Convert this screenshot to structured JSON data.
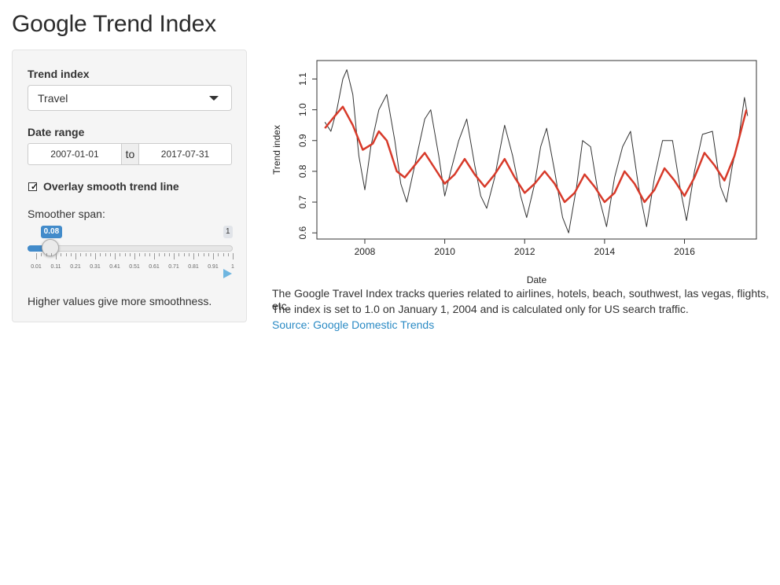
{
  "page": {
    "title": "Google Trend Index"
  },
  "sidebar": {
    "trend_label": "Trend index",
    "trend_value": "Travel",
    "date_label": "Date range",
    "date_from": "2007-01-01",
    "date_sep": "to",
    "date_to": "2017-07-31",
    "overlay_label": "Overlay smooth trend line",
    "overlay_checked": true,
    "span_label": "Smoother span:",
    "slider": {
      "value": "0.08",
      "max": "1",
      "value_fraction": 0.0707,
      "tick_labels": [
        "0.01",
        "0.11",
        "0.21",
        "0.31",
        "0.41",
        "0.51",
        "0.61",
        "0.71",
        "0.81",
        "0.91",
        "1"
      ]
    },
    "help": "Higher values give more smoothness."
  },
  "description": {
    "line1": "The Google Travel Index tracks queries related to airlines, hotels, beach, southwest, las vegas, flights, etc.",
    "line2": "The index is set to 1.0 on January 1, 2004 and is calculated only for US search traffic.",
    "source": "Source: Google Domestic Trends"
  },
  "colors": {
    "raw": "#333333",
    "smooth": "#d73a2a",
    "accent": "#428bca",
    "link": "#2a8ac4"
  },
  "chart_data": {
    "type": "line",
    "xlabel": "Date",
    "ylabel": "Trend index",
    "xlim": [
      2006.8,
      2017.8
    ],
    "ylim": [
      0.58,
      1.16
    ],
    "x_ticks": [
      2008,
      2010,
      2012,
      2014,
      2016
    ],
    "y_ticks": [
      0.6,
      0.7,
      0.8,
      0.9,
      1.0,
      1.1
    ],
    "y_tick_labels": [
      "0.6",
      "0.7",
      "0.8",
      "0.9",
      "1.0",
      "1.1"
    ],
    "series": [
      {
        "kind": "raw",
        "x": [
          2007.0,
          2007.15,
          2007.3,
          2007.45,
          2007.55,
          2007.7,
          2007.85,
          2008.0,
          2008.15,
          2008.35,
          2008.55,
          2008.75,
          2008.9,
          2009.05,
          2009.25,
          2009.5,
          2009.65,
          2009.85,
          2010.0,
          2010.15,
          2010.35,
          2010.55,
          2010.75,
          2010.9,
          2011.05,
          2011.25,
          2011.5,
          2011.7,
          2011.9,
          2012.05,
          2012.25,
          2012.4,
          2012.55,
          2012.75,
          2012.95,
          2013.1,
          2013.3,
          2013.45,
          2013.65,
          2013.85,
          2014.05,
          2014.25,
          2014.45,
          2014.65,
          2014.85,
          2015.05,
          2015.25,
          2015.45,
          2015.7,
          2015.9,
          2016.05,
          2016.25,
          2016.45,
          2016.7,
          2016.9,
          2017.05,
          2017.2,
          2017.35,
          2017.5,
          2017.58
        ],
        "y": [
          0.96,
          0.93,
          1.0,
          1.1,
          1.13,
          1.05,
          0.85,
          0.74,
          0.88,
          1.0,
          1.05,
          0.9,
          0.76,
          0.7,
          0.82,
          0.97,
          1.0,
          0.85,
          0.72,
          0.8,
          0.9,
          0.97,
          0.82,
          0.72,
          0.68,
          0.78,
          0.95,
          0.85,
          0.72,
          0.65,
          0.76,
          0.88,
          0.94,
          0.8,
          0.65,
          0.6,
          0.75,
          0.9,
          0.88,
          0.72,
          0.62,
          0.78,
          0.88,
          0.93,
          0.75,
          0.62,
          0.78,
          0.9,
          0.9,
          0.74,
          0.64,
          0.8,
          0.92,
          0.93,
          0.75,
          0.7,
          0.82,
          0.9,
          1.04,
          0.98
        ]
      },
      {
        "kind": "smooth",
        "x": [
          2007.0,
          2007.25,
          2007.45,
          2007.7,
          2007.95,
          2008.2,
          2008.35,
          2008.55,
          2008.8,
          2009.0,
          2009.25,
          2009.5,
          2009.75,
          2010.0,
          2010.25,
          2010.5,
          2010.75,
          2011.0,
          2011.25,
          2011.5,
          2011.75,
          2012.0,
          2012.25,
          2012.5,
          2012.75,
          2013.0,
          2013.25,
          2013.5,
          2013.75,
          2014.0,
          2014.25,
          2014.5,
          2014.75,
          2015.0,
          2015.25,
          2015.5,
          2015.75,
          2016.0,
          2016.25,
          2016.5,
          2016.75,
          2017.0,
          2017.25,
          2017.45,
          2017.55
        ],
        "y": [
          0.94,
          0.98,
          1.01,
          0.95,
          0.87,
          0.89,
          0.93,
          0.9,
          0.8,
          0.78,
          0.82,
          0.86,
          0.81,
          0.76,
          0.79,
          0.84,
          0.79,
          0.75,
          0.79,
          0.84,
          0.78,
          0.73,
          0.76,
          0.8,
          0.76,
          0.7,
          0.73,
          0.79,
          0.75,
          0.7,
          0.73,
          0.8,
          0.76,
          0.7,
          0.74,
          0.81,
          0.77,
          0.72,
          0.78,
          0.86,
          0.82,
          0.77,
          0.85,
          0.95,
          1.0
        ]
      }
    ]
  }
}
